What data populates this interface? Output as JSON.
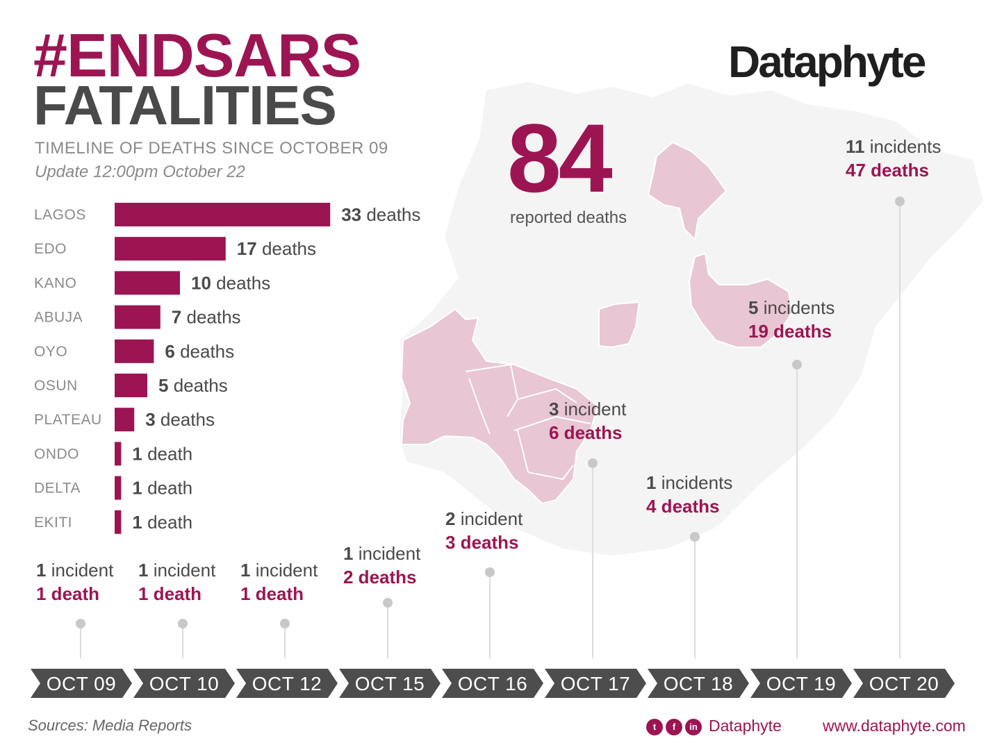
{
  "header": {
    "title_line1": "#ENDSARS",
    "title_line2": "FATALITIES",
    "subtitle": "TIMELINE OF DEATHS SINCE OCTOBER 09",
    "update": "Update 12:00pm October 22"
  },
  "brand": {
    "logo": "Dataphyte",
    "handle": "Dataphyte",
    "website": "www.dataphyte.com",
    "social_icons": [
      "twitter-icon",
      "facebook-icon",
      "linkedin-icon"
    ]
  },
  "total": {
    "value": "84",
    "label": "reported deaths"
  },
  "colors": {
    "accent": "#9c1552",
    "dark": "#4d4d4d",
    "map_base": "#f4f4f4",
    "map_highlight": "#e8c6d3"
  },
  "chart_data": [
    {
      "type": "bar",
      "orientation": "horizontal",
      "categories": [
        "LAGOS",
        "EDO",
        "KANO",
        "ABUJA",
        "OYO",
        "OSUN",
        "PLATEAU",
        "ONDO",
        "DELTA",
        "EKITI"
      ],
      "values": [
        33,
        17,
        10,
        7,
        6,
        5,
        3,
        1,
        1,
        1
      ],
      "value_labels": [
        {
          "num": "33",
          "unit": "deaths"
        },
        {
          "num": "17",
          "unit": "deaths"
        },
        {
          "num": "10",
          "unit": "deaths"
        },
        {
          "num": "7",
          "unit": "deaths"
        },
        {
          "num": "6",
          "unit": "deaths"
        },
        {
          "num": "5",
          "unit": "deaths"
        },
        {
          "num": "3",
          "unit": "deaths"
        },
        {
          "num": "1",
          "unit": "death"
        },
        {
          "num": "1",
          "unit": "death"
        },
        {
          "num": "1",
          "unit": "death"
        }
      ]
    },
    {
      "type": "timeline",
      "events": [
        {
          "date": "OCT 09",
          "incidents": "1",
          "incident_word": "incident",
          "deaths": "1 death"
        },
        {
          "date": "OCT 10",
          "incidents": "1",
          "incident_word": "incident",
          "deaths": "1 death"
        },
        {
          "date": "OCT 12",
          "incidents": "1",
          "incident_word": "incident",
          "deaths": "1 death"
        },
        {
          "date": "OCT 15",
          "incidents": "1",
          "incident_word": "incident",
          "deaths": "2 deaths"
        },
        {
          "date": "OCT 16",
          "incidents": "2",
          "incident_word": "incident",
          "deaths": "3 deaths"
        },
        {
          "date": "OCT 17",
          "incidents": "3",
          "incident_word": "incident",
          "deaths": "6 deaths"
        },
        {
          "date": "OCT 18",
          "incidents": "1",
          "incident_word": "incidents",
          "deaths": "4 deaths"
        },
        {
          "date": "OCT 19",
          "incidents": "5",
          "incident_word": "incidents",
          "deaths": "19 deaths"
        },
        {
          "date": "OCT 20",
          "incidents": "11",
          "incident_word": "incidents",
          "deaths": "47 deaths"
        }
      ]
    }
  ],
  "footer": {
    "source": "Sources: Media Reports"
  }
}
